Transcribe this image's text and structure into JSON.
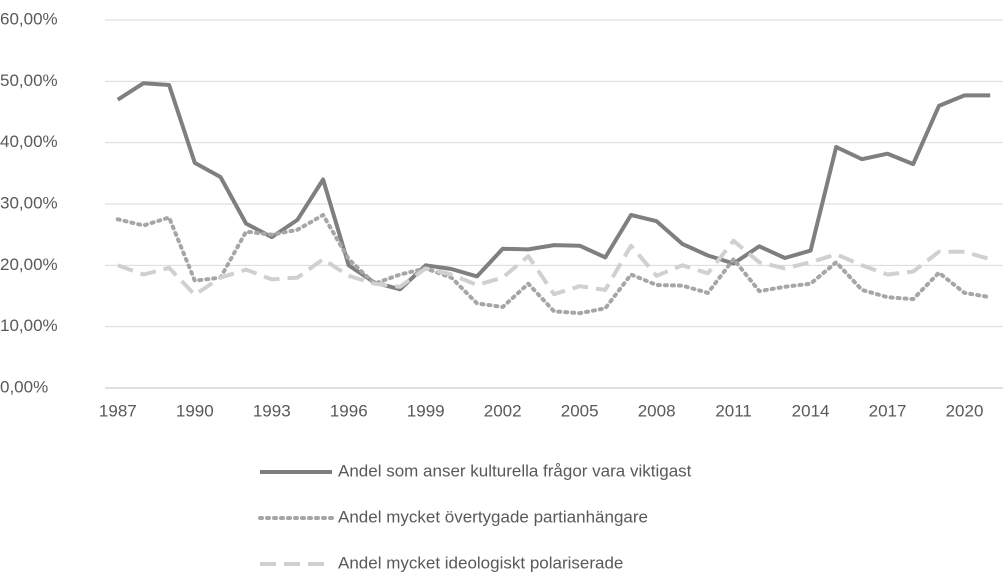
{
  "chart_data": {
    "type": "line",
    "categories": [
      "1987",
      null,
      null,
      "1990",
      null,
      null,
      "1993",
      null,
      null,
      "1996",
      null,
      null,
      "1999",
      null,
      null,
      "2002",
      null,
      null,
      "2005",
      null,
      null,
      "2008",
      null,
      null,
      "2011",
      null,
      null,
      "2014",
      null,
      null,
      "2017",
      null,
      null,
      "2020",
      null
    ],
    "series": [
      {
        "name": "Andel som anser kulturella frågor vara viktigast",
        "color": "#7f7f7f",
        "dash": "solid",
        "values": [
          47,
          49.7,
          49.4,
          36.7,
          34.4,
          26.8,
          24.6,
          27.4,
          34,
          20,
          17.2,
          16.1,
          20,
          19.4,
          18.2,
          22.7,
          22.6,
          23.3,
          23.2,
          21.3,
          28.2,
          27.2,
          23.5,
          21.6,
          20.3,
          23.1,
          21.2,
          22.4,
          39.3,
          37.3,
          38.2,
          36.5,
          46,
          47.7,
          47.7
        ]
      },
      {
        "name": "Andel mycket övertygade partianhängare",
        "color": "#a6a6a6",
        "dash": "dotted",
        "values": [
          27.5,
          26.5,
          27.8,
          17.5,
          18,
          25.5,
          25,
          25.8,
          28.2,
          21,
          17,
          18.5,
          19.5,
          18,
          13.8,
          13.2,
          17,
          12.5,
          12.2,
          13,
          18.5,
          16.8,
          16.7,
          15.5,
          21,
          15.8,
          16.5,
          17,
          20.5,
          16,
          14.8,
          14.5,
          18.8,
          15.5,
          14.8
        ]
      },
      {
        "name": "Andel mycket ideologiskt polariserade",
        "color": "#d0d0d0",
        "dash": "dashed",
        "values": [
          20,
          18.5,
          19.6,
          15.2,
          18,
          19.3,
          17.7,
          18,
          21,
          18.3,
          17,
          16.5,
          19.5,
          18.5,
          16.8,
          18,
          21.5,
          15.3,
          16.6,
          16,
          23.2,
          18.3,
          20,
          18.7,
          24,
          20.5,
          19.5,
          20.5,
          21.8,
          20,
          18.5,
          19,
          22.2,
          22.2,
          21
        ]
      }
    ],
    "ylim": [
      0,
      60
    ],
    "yticks": [
      {
        "value": 0,
        "label": "0,00%"
      },
      {
        "value": 10,
        "label": "10,00%"
      },
      {
        "value": 20,
        "label": "20,00%"
      },
      {
        "value": 30,
        "label": "30,00%"
      },
      {
        "value": 40,
        "label": "40,00%"
      },
      {
        "value": 50,
        "label": "50,00%"
      },
      {
        "value": 60,
        "label": "60,00%"
      }
    ],
    "grid": true,
    "legend": "bottom"
  }
}
